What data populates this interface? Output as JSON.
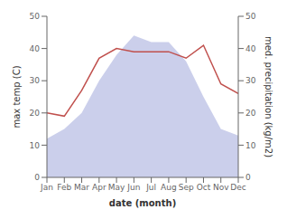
{
  "chart_data": {
    "type": "line",
    "categories": [
      "Jan",
      "Feb",
      "Mar",
      "Apr",
      "May",
      "Jun",
      "Jul",
      "Aug",
      "Sep",
      "Oct",
      "Nov",
      "Dec"
    ],
    "series": [
      {
        "type": "area",
        "color": "#c5cae9",
        "axis": "y2",
        "values": [
          12,
          15,
          20,
          30,
          38,
          44,
          42,
          42,
          36,
          25,
          15,
          13
        ]
      },
      {
        "type": "line",
        "color": "#c0504d",
        "values": [
          20,
          19,
          27,
          37,
          40,
          39,
          39,
          39,
          37,
          41,
          29,
          26
        ]
      }
    ],
    "xlabel": "date (month)",
    "ylabel": "max temp (C)",
    "y2label": "med. precipitation (kg/m2)",
    "ylim": [
      0,
      50
    ],
    "yticks": [
      0,
      10,
      20,
      30,
      40,
      50
    ],
    "y2lim": [
      0,
      50
    ],
    "y2ticks": [
      0,
      10,
      20,
      30,
      40,
      50
    ]
  }
}
